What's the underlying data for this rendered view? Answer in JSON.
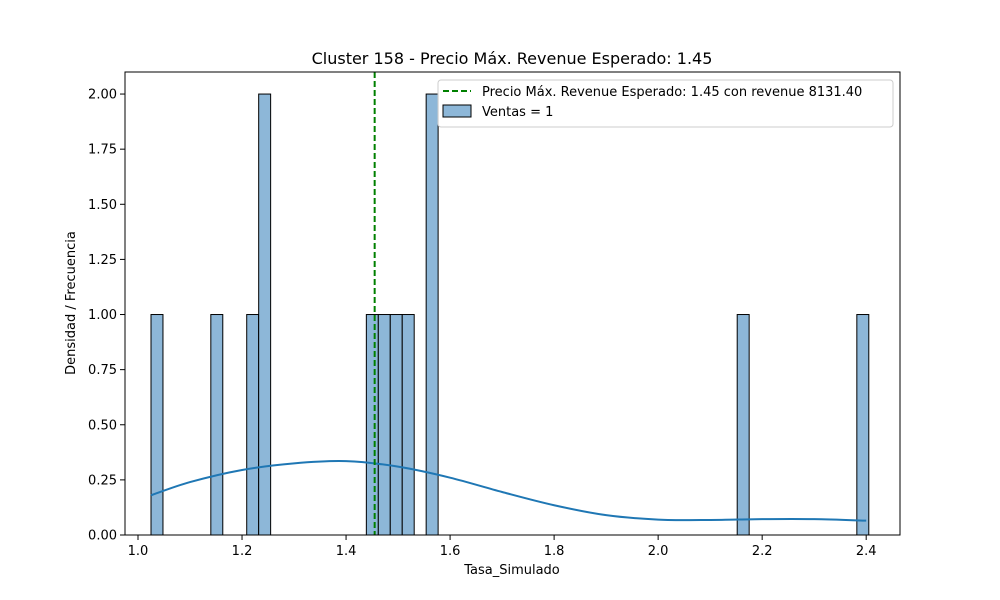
{
  "chart_data": {
    "type": "bar",
    "title": "Cluster 158 - Precio Máx. Revenue Esperado: 1.45",
    "xlabel": "Tasa_Simulado",
    "ylabel": "Densidad / Frecuencia",
    "xlim": [
      0.975,
      2.465
    ],
    "ylim": [
      0,
      2.1
    ],
    "x_ticks": [
      1.0,
      1.2,
      1.4,
      1.6,
      1.8,
      2.0,
      2.2,
      2.4
    ],
    "x_tick_labels": [
      "1.0",
      "1.2",
      "1.4",
      "1.6",
      "1.8",
      "2.0",
      "2.2",
      "2.4"
    ],
    "y_ticks": [
      0,
      0.25,
      0.5,
      0.75,
      1.0,
      1.25,
      1.5,
      1.75,
      2.0
    ],
    "y_tick_labels": [
      "0.00",
      "0.25",
      "0.50",
      "0.75",
      "1.00",
      "1.25",
      "1.50",
      "1.75",
      "2.00"
    ],
    "bin_width": 0.023,
    "histogram": {
      "name": "Ventas = 1",
      "color": "#8db7d8",
      "edge_color": "#000000",
      "bins": [
        {
          "x0": 1.025,
          "x1": 1.048,
          "count": 1
        },
        {
          "x0": 1.14,
          "x1": 1.163,
          "count": 1
        },
        {
          "x0": 1.209,
          "x1": 1.232,
          "count": 1
        },
        {
          "x0": 1.232,
          "x1": 1.255,
          "count": 2
        },
        {
          "x0": 1.439,
          "x1": 1.462,
          "count": 1
        },
        {
          "x0": 1.462,
          "x1": 1.485,
          "count": 1
        },
        {
          "x0": 1.485,
          "x1": 1.508,
          "count": 1
        },
        {
          "x0": 1.508,
          "x1": 1.531,
          "count": 1
        },
        {
          "x0": 1.554,
          "x1": 1.577,
          "count": 2
        },
        {
          "x0": 2.152,
          "x1": 2.175,
          "count": 1
        },
        {
          "x0": 2.382,
          "x1": 2.405,
          "count": 1
        }
      ]
    },
    "kde": {
      "color": "#1f77b4",
      "x": [
        1.025,
        1.1,
        1.2,
        1.3,
        1.4,
        1.5,
        1.6,
        1.7,
        1.8,
        1.9,
        2.0,
        2.1,
        2.2,
        2.3,
        2.4
      ],
      "y": [
        0.18,
        0.24,
        0.295,
        0.325,
        0.335,
        0.31,
        0.26,
        0.195,
        0.135,
        0.09,
        0.07,
        0.068,
        0.072,
        0.072,
        0.065
      ]
    },
    "vline": {
      "x": 1.455,
      "color": "#008000",
      "style": "dashed",
      "label": "Precio Máx. Revenue Esperado: 1.45 con revenue 8131.40"
    },
    "legend": {
      "position": "top-right",
      "entries": [
        "Precio Máx. Revenue Esperado: 1.45 con revenue 8131.40",
        "Ventas = 1"
      ]
    }
  }
}
